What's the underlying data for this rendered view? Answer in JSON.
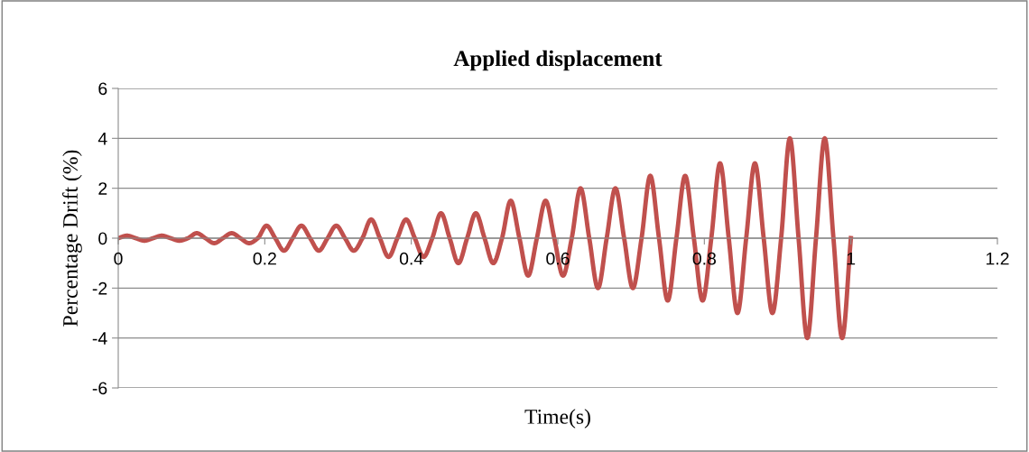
{
  "chart_data": {
    "type": "line",
    "title": "Applied displacement",
    "xlabel": "Time(s)",
    "ylabel": "Percentage Drift (%)",
    "x": [
      0,
      0.0119,
      0.0238,
      0.0357,
      0.0476,
      0.0595,
      0.0714,
      0.0833,
      0.0952,
      0.1071,
      0.119,
      0.131,
      0.1429,
      0.1548,
      0.1667,
      0.1786,
      0.1905,
      0.2024,
      0.2143,
      0.2262,
      0.2381,
      0.25,
      0.2619,
      0.2738,
      0.2857,
      0.2976,
      0.3095,
      0.3214,
      0.3333,
      0.3452,
      0.3571,
      0.369,
      0.381,
      0.3929,
      0.4048,
      0.4167,
      0.4286,
      0.4405,
      0.4524,
      0.4643,
      0.4762,
      0.4881,
      0.5,
      0.5119,
      0.5238,
      0.5357,
      0.5476,
      0.5595,
      0.5714,
      0.5833,
      0.5952,
      0.6071,
      0.619,
      0.631,
      0.6429,
      0.6548,
      0.6667,
      0.6786,
      0.6905,
      0.7024,
      0.7143,
      0.7262,
      0.7381,
      0.75,
      0.7619,
      0.7738,
      0.7857,
      0.7976,
      0.8095,
      0.8214,
      0.8333,
      0.8452,
      0.8571,
      0.869,
      0.881,
      0.8929,
      0.9048,
      0.9167,
      0.9286,
      0.9405,
      0.9524,
      0.9643,
      0.9762,
      0.9881,
      1
    ],
    "series": [
      {
        "color": "#c0504d",
        "values": [
          0,
          0.1,
          0,
          -0.1,
          0,
          0.1,
          0,
          -0.1,
          0,
          0.2,
          0,
          -0.2,
          0,
          0.2,
          0,
          -0.2,
          0,
          0.5,
          0,
          -0.5,
          0,
          0.5,
          0,
          -0.5,
          0,
          0.5,
          0,
          -0.5,
          0,
          0.75,
          0,
          -0.75,
          0,
          0.75,
          0,
          -0.75,
          0,
          1,
          0,
          -1,
          0,
          1,
          0,
          -1,
          0,
          1.5,
          0,
          -1.5,
          0,
          1.5,
          0,
          -1.5,
          0,
          2,
          0,
          -2,
          0,
          2,
          0,
          -2,
          0,
          2.5,
          0,
          -2.5,
          0,
          2.5,
          0,
          -2.5,
          0,
          3,
          0,
          -3,
          0,
          3,
          0,
          -3,
          0,
          4,
          0,
          -4,
          0,
          4,
          0,
          -4,
          0
        ]
      }
    ],
    "xlim": [
      0,
      1.2
    ],
    "xticks": [
      0,
      0.2,
      0.4,
      0.6,
      0.8,
      1,
      1.2
    ],
    "ylim": [
      -6,
      6
    ],
    "yticks": [
      -6,
      -4,
      -2,
      0,
      2,
      4,
      6
    ],
    "grid": "y",
    "legend": false,
    "marker": "none",
    "line_style": "solid"
  }
}
